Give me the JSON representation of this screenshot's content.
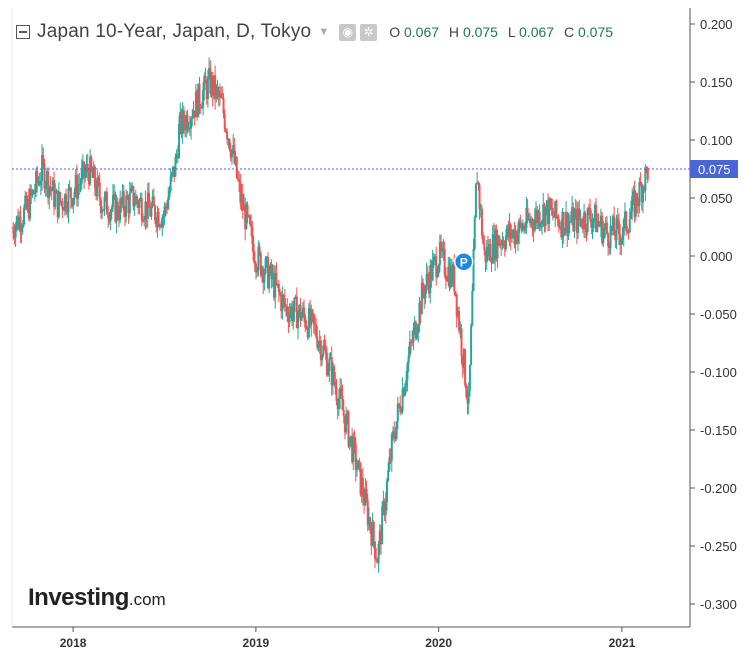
{
  "legend": {
    "title": "Japan 10-Year, Japan, D, Tokyo",
    "open_label": "O",
    "open": "0.067",
    "high_label": "H",
    "high": "0.075",
    "low_label": "L",
    "low": "0.067",
    "close_label": "C",
    "close": "0.075"
  },
  "branding": {
    "logo_main": "Investing",
    "logo_suffix": ".com"
  },
  "marker": {
    "label": "P"
  },
  "colors": {
    "up": "#26a69a",
    "down": "#ef5350",
    "price_line": "#4a66d6",
    "axis": "#555555",
    "background": "#ffffff"
  },
  "chart_data": {
    "type": "candlestick",
    "title": "Japan 10-Year, Japan, D, Tokyo",
    "xlabel": "",
    "ylabel": "",
    "y_ticks": [
      "0.200",
      "0.150",
      "0.100",
      "0.050",
      "0.000",
      "-0.050",
      "-0.100",
      "-0.150",
      "-0.200",
      "-0.250",
      "-0.300"
    ],
    "y_tick_values": [
      0.2,
      0.15,
      0.1,
      0.05,
      0.0,
      -0.05,
      -0.1,
      -0.15,
      -0.2,
      -0.25,
      -0.3
    ],
    "x_ticks": [
      "2018",
      "2019",
      "2020",
      "2021"
    ],
    "x_tick_dates": [
      "2018-01-01",
      "2019-01-01",
      "2020-01-01",
      "2021-01-01"
    ],
    "x_range": [
      "2017-09-01",
      "2021-03-10"
    ],
    "ylim": [
      -0.315,
      0.21
    ],
    "current_price": 0.075,
    "current_price_label": "0.075",
    "series": [
      {
        "name": "Japan 10-Year",
        "dates": [
          "2017-09-01",
          "2017-10-01",
          "2017-11-01",
          "2017-12-01",
          "2018-01-01",
          "2018-02-01",
          "2018-03-01",
          "2018-04-01",
          "2018-05-01",
          "2018-06-01",
          "2018-07-01",
          "2018-07-25",
          "2018-08-01",
          "2018-09-01",
          "2018-10-01",
          "2018-10-25",
          "2018-11-15",
          "2018-12-01",
          "2019-01-01",
          "2019-02-01",
          "2019-03-01",
          "2019-04-01",
          "2019-05-01",
          "2019-06-01",
          "2019-07-01",
          "2019-08-01",
          "2019-09-01",
          "2019-10-01",
          "2019-11-01",
          "2019-12-01",
          "2020-01-01",
          "2020-02-01",
          "2020-03-01",
          "2020-03-17",
          "2020-04-01",
          "2020-05-01",
          "2020-06-01",
          "2020-07-01",
          "2020-08-01",
          "2020-09-01",
          "2020-10-01",
          "2020-11-01",
          "2020-12-01",
          "2021-01-01",
          "2021-02-01",
          "2021-02-22"
        ],
        "values": [
          0.025,
          0.04,
          0.075,
          0.045,
          0.055,
          0.075,
          0.045,
          0.04,
          0.05,
          0.04,
          0.035,
          0.08,
          0.11,
          0.13,
          0.15,
          0.13,
          0.09,
          0.05,
          0.0,
          -0.02,
          -0.045,
          -0.05,
          -0.065,
          -0.1,
          -0.145,
          -0.2,
          -0.26,
          -0.16,
          -0.09,
          -0.03,
          0.0,
          -0.02,
          -0.13,
          0.075,
          0.0,
          0.015,
          0.02,
          0.03,
          0.04,
          0.03,
          0.03,
          0.035,
          0.02,
          0.02,
          0.05,
          0.075
        ]
      }
    ]
  }
}
